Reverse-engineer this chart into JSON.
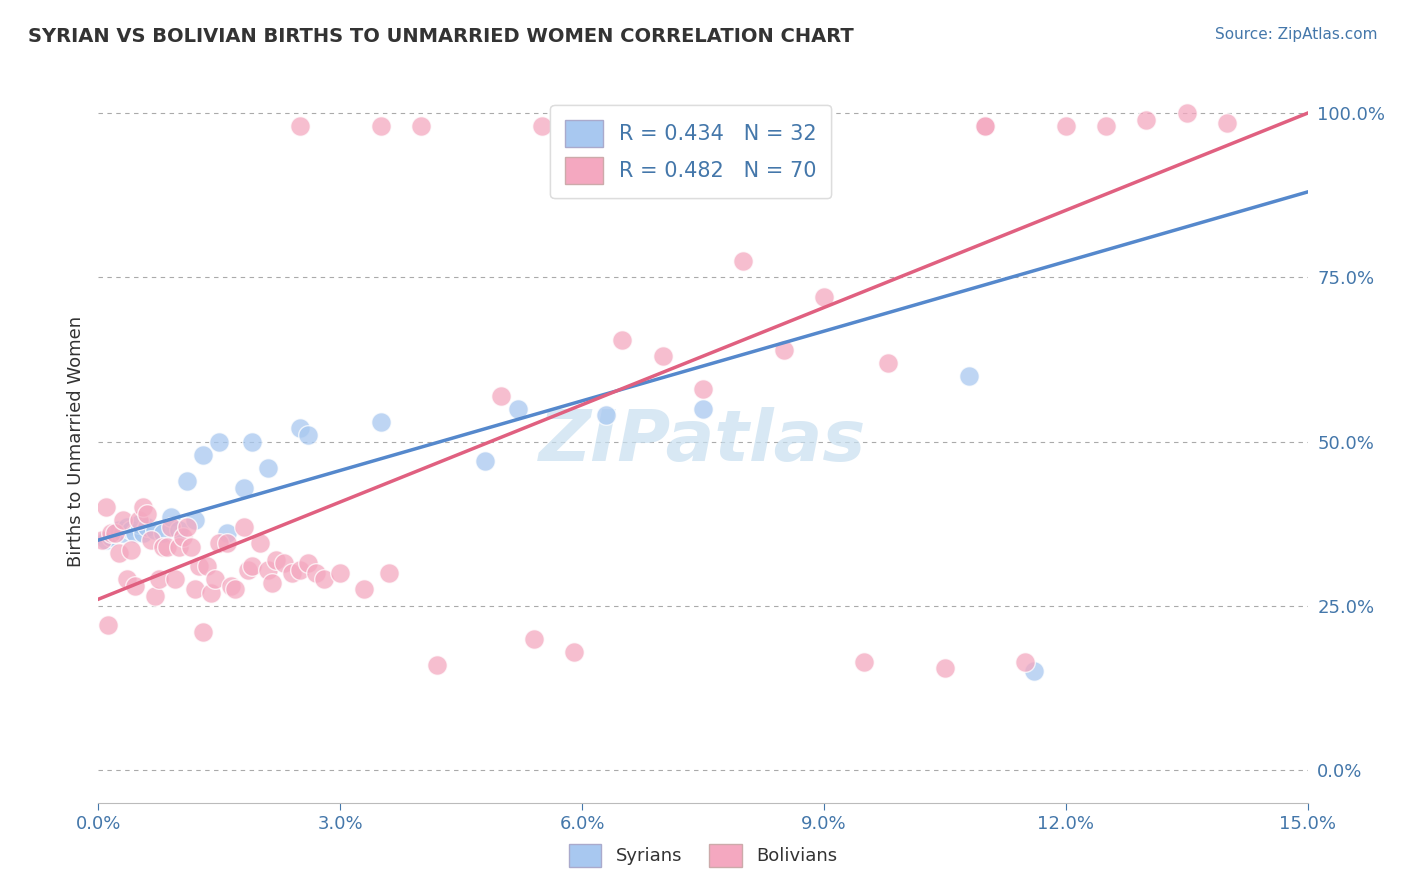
{
  "title": "SYRIAN VS BOLIVIAN BIRTHS TO UNMARRIED WOMEN CORRELATION CHART",
  "source": "Source: ZipAtlas.com",
  "ylabel": "Births to Unmarried Women",
  "xlim": [
    0.0,
    15.0
  ],
  "ylim": [
    -5.0,
    105.0
  ],
  "xtick_vals": [
    0.0,
    3.0,
    6.0,
    9.0,
    12.0,
    15.0
  ],
  "xtick_labels": [
    "0.0%",
    "3.0%",
    "6.0%",
    "9.0%",
    "12.0%",
    "15.0%"
  ],
  "ytick_vals": [
    0.0,
    25.0,
    50.0,
    75.0,
    100.0
  ],
  "ytick_labels_right": [
    "0.0%",
    "25.0%",
    "50.0%",
    "75.0%",
    "100.0%"
  ],
  "syrian_color": "#a8c8f0",
  "bolivian_color": "#f4a8c0",
  "syrian_line_color": "#5588cc",
  "bolivian_line_color": "#e06080",
  "legend_label_1": "R = 0.434   N = 32",
  "legend_label_2": "R = 0.482   N = 70",
  "legend_bottom_1": "Syrians",
  "legend_bottom_2": "Bolivians",
  "watermark": "ZIPatlas",
  "watermark_color": "#c8dff0",
  "syr_line": [
    0.0,
    35.0,
    15.0,
    88.0
  ],
  "bol_line": [
    0.0,
    26.0,
    15.0,
    100.0
  ],
  "syrian_points": [
    [
      0.1,
      35.0
    ],
    [
      0.15,
      35.5
    ],
    [
      0.2,
      36.0
    ],
    [
      0.25,
      36.5
    ],
    [
      0.3,
      36.0
    ],
    [
      0.35,
      37.0
    ],
    [
      0.4,
      36.5
    ],
    [
      0.45,
      36.0
    ],
    [
      0.5,
      37.5
    ],
    [
      0.55,
      36.0
    ],
    [
      0.6,
      37.0
    ],
    [
      0.7,
      36.5
    ],
    [
      0.8,
      36.0
    ],
    [
      0.9,
      38.5
    ],
    [
      1.0,
      36.5
    ],
    [
      1.1,
      44.0
    ],
    [
      1.2,
      38.0
    ],
    [
      1.3,
      48.0
    ],
    [
      1.5,
      50.0
    ],
    [
      1.6,
      36.0
    ],
    [
      1.8,
      43.0
    ],
    [
      1.9,
      50.0
    ],
    [
      2.1,
      46.0
    ],
    [
      2.5,
      52.0
    ],
    [
      2.6,
      51.0
    ],
    [
      3.5,
      53.0
    ],
    [
      4.8,
      47.0
    ],
    [
      5.2,
      55.0
    ],
    [
      6.3,
      54.0
    ],
    [
      7.5,
      55.0
    ],
    [
      10.8,
      60.0
    ],
    [
      11.6,
      15.0
    ]
  ],
  "bolivian_points": [
    [
      0.05,
      35.0
    ],
    [
      0.1,
      40.0
    ],
    [
      0.12,
      22.0
    ],
    [
      0.15,
      36.0
    ],
    [
      0.2,
      36.0
    ],
    [
      0.25,
      33.0
    ],
    [
      0.3,
      38.0
    ],
    [
      0.35,
      29.0
    ],
    [
      0.4,
      33.5
    ],
    [
      0.45,
      28.0
    ],
    [
      0.5,
      38.0
    ],
    [
      0.55,
      40.0
    ],
    [
      0.6,
      39.0
    ],
    [
      0.65,
      35.0
    ],
    [
      0.7,
      26.5
    ],
    [
      0.75,
      29.0
    ],
    [
      0.8,
      34.0
    ],
    [
      0.85,
      34.0
    ],
    [
      0.9,
      37.0
    ],
    [
      0.95,
      29.0
    ],
    [
      1.0,
      34.0
    ],
    [
      1.05,
      35.5
    ],
    [
      1.1,
      37.0
    ],
    [
      1.15,
      34.0
    ],
    [
      1.2,
      27.5
    ],
    [
      1.25,
      31.0
    ],
    [
      1.3,
      21.0
    ],
    [
      1.35,
      31.0
    ],
    [
      1.4,
      27.0
    ],
    [
      1.45,
      29.0
    ],
    [
      1.5,
      34.5
    ],
    [
      1.6,
      34.5
    ],
    [
      1.65,
      28.0
    ],
    [
      1.7,
      27.5
    ],
    [
      1.8,
      37.0
    ],
    [
      1.85,
      30.5
    ],
    [
      1.9,
      31.0
    ],
    [
      2.0,
      34.5
    ],
    [
      2.1,
      30.5
    ],
    [
      2.15,
      28.5
    ],
    [
      2.2,
      32.0
    ],
    [
      2.3,
      31.5
    ],
    [
      2.4,
      30.0
    ],
    [
      2.5,
      30.5
    ],
    [
      2.6,
      31.5
    ],
    [
      2.7,
      30.0
    ],
    [
      2.8,
      29.0
    ],
    [
      3.0,
      30.0
    ],
    [
      3.3,
      27.5
    ],
    [
      3.6,
      30.0
    ],
    [
      4.2,
      16.0
    ],
    [
      5.0,
      57.0
    ],
    [
      5.4,
      20.0
    ],
    [
      5.9,
      18.0
    ],
    [
      6.5,
      65.5
    ],
    [
      7.0,
      63.0
    ],
    [
      7.5,
      58.0
    ],
    [
      8.0,
      77.5
    ],
    [
      8.5,
      64.0
    ],
    [
      9.0,
      72.0
    ],
    [
      9.5,
      16.5
    ],
    [
      9.8,
      62.0
    ],
    [
      10.5,
      15.5
    ],
    [
      11.0,
      98.0
    ],
    [
      11.5,
      16.5
    ],
    [
      12.0,
      98.0
    ],
    [
      12.5,
      98.0
    ],
    [
      13.0,
      99.0
    ],
    [
      13.5,
      100.0
    ],
    [
      14.0,
      98.5
    ]
  ],
  "top_row_blue": [
    [
      2.5,
      98.0
    ],
    [
      3.5,
      98.0
    ],
    [
      4.0,
      98.0
    ],
    [
      5.5,
      98.0
    ],
    [
      6.5,
      98.0
    ],
    [
      11.0,
      98.0
    ]
  ]
}
